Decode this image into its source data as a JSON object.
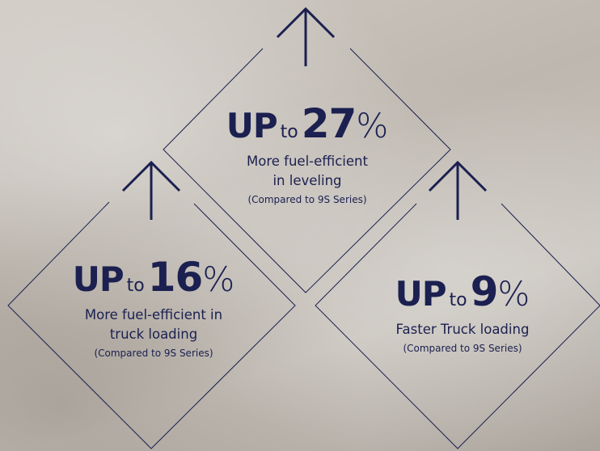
{
  "items": [
    {
      "up": "UP",
      "to": "to",
      "value": "27",
      "unit": "%",
      "lines": [
        "More fuel-efficient",
        "in leveling"
      ],
      "note": "(Compared to 9S Series)"
    },
    {
      "up": "UP",
      "to": "to",
      "value": "16",
      "unit": "%",
      "lines": [
        "More fuel-efficient in",
        "truck loading"
      ],
      "note": "(Compared to 9S Series)"
    },
    {
      "up": "UP",
      "to": "to",
      "value": "9",
      "unit": "%",
      "lines": [
        "Faster Truck loading"
      ],
      "note": "(Compared to 9S Series)"
    }
  ]
}
